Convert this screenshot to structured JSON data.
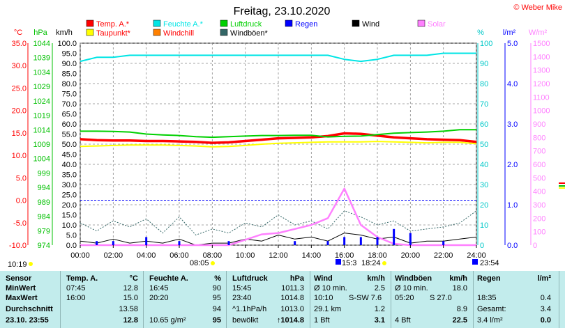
{
  "title": "Freitag, 23.10.2020",
  "credit": "© Weber Mike",
  "legend": [
    {
      "name": "Temp. A.*",
      "color": "#ff0000"
    },
    {
      "name": "Feuchte A.*",
      "color": "#00e5e5"
    },
    {
      "name": "Luftdruck",
      "color": "#00d000"
    },
    {
      "name": "Regen",
      "color": "#0000ff"
    },
    {
      "name": "Wind",
      "color": "#000000"
    },
    {
      "name": "Solar",
      "color": "#ff80ff"
    },
    {
      "name": "Taupunkt*",
      "color": "#ffff00"
    },
    {
      "name": "Windchill",
      "color": "#ff8000"
    },
    {
      "name": "Windböen*",
      "color": "#336666"
    }
  ],
  "axis_units": {
    "temp": "°C",
    "pressure": "hPa",
    "wind": "km/h",
    "humidity": "%",
    "rain": "l/m²",
    "solar": "W/m²"
  },
  "chart_data": {
    "type": "line",
    "x": [
      "00:00",
      "01:00",
      "02:00",
      "03:00",
      "04:00",
      "05:00",
      "06:00",
      "07:00",
      "08:00",
      "09:00",
      "10:00",
      "11:00",
      "12:00",
      "13:00",
      "14:00",
      "15:00",
      "16:00",
      "17:00",
      "18:00",
      "19:00",
      "20:00",
      "21:00",
      "22:00",
      "23:00",
      "24:00"
    ],
    "xticks": [
      "00:00",
      "02:00",
      "04:00",
      "06:00",
      "08:00",
      "10:00",
      "12:00",
      "14:00",
      "16:00",
      "18:00",
      "20:00",
      "22:00",
      "24:00"
    ],
    "axes": {
      "temp": {
        "label": "°C",
        "ylim": [
          -10,
          35
        ],
        "ticks": [
          "35.0",
          "30.0",
          "25.0",
          "20.0",
          "15.0",
          "10.0",
          "5.0",
          "0.0",
          "-5.0",
          "-10.0"
        ]
      },
      "pressure": {
        "label": "hPa",
        "ylim": [
          974,
          1044
        ],
        "ticks": [
          "1044",
          "1039",
          "1034",
          "1029",
          "1024",
          "1019",
          "1014",
          "1009",
          "1004",
          "999",
          "994",
          "989",
          "984",
          "979",
          "974"
        ]
      },
      "wind": {
        "label": "km/h",
        "ylim": [
          0,
          100
        ],
        "ticks": [
          "100.0",
          "95.0",
          "90.0",
          "85.0",
          "80.0",
          "75.0",
          "70.0",
          "65.0",
          "60.0",
          "55.0",
          "50.0",
          "45.0",
          "40.0",
          "35.0",
          "30.0",
          "25.0",
          "20.0",
          "15.0",
          "10.0",
          "5.0",
          "0.0"
        ]
      },
      "humidity": {
        "label": "%",
        "ylim": [
          0,
          100
        ],
        "ticks": [
          "100",
          "90",
          "80",
          "70",
          "60",
          "50",
          "40",
          "30",
          "20",
          "10",
          "0"
        ]
      },
      "rain": {
        "label": "l/m²",
        "ylim": [
          0,
          5
        ],
        "ticks": [
          "5.0",
          "4.0",
          "3.0",
          "2.0",
          "1.0",
          "0.0"
        ]
      },
      "solar": {
        "label": "W/m²",
        "ylim": [
          0,
          1500
        ],
        "ticks": [
          "1500",
          "1400",
          "1300",
          "1200",
          "1100",
          "1000",
          "900",
          "800",
          "700",
          "600",
          "500",
          "400",
          "300",
          "200",
          "100",
          "0"
        ]
      }
    },
    "series": [
      {
        "name": "Temp. A.*",
        "axis": "temp",
        "color": "#ff0000",
        "values": [
          13.6,
          13.4,
          13.3,
          13.3,
          13.2,
          13.2,
          13.1,
          13.0,
          12.8,
          12.9,
          13.2,
          13.5,
          13.8,
          13.9,
          14.0,
          14.3,
          14.9,
          14.8,
          14.4,
          14.0,
          13.8,
          13.6,
          13.5,
          13.4,
          13.0
        ]
      },
      {
        "name": "Feuchte A.*",
        "axis": "humidity",
        "color": "#00e5e5",
        "values": [
          91,
          93,
          93,
          94,
          94,
          94,
          94,
          94,
          94,
          94,
          94,
          94,
          94,
          94,
          94,
          94,
          92,
          91,
          92,
          94,
          94,
          94,
          95,
          95,
          95
        ]
      },
      {
        "name": "Luftdruck",
        "axis": "pressure",
        "color": "#00d000",
        "values": [
          1013.5,
          1013.5,
          1013.4,
          1013.2,
          1012.5,
          1012.2,
          1012.0,
          1011.6,
          1011.4,
          1011.6,
          1011.8,
          1012.0,
          1012.0,
          1012.1,
          1012.1,
          1011.5,
          1011.7,
          1011.8,
          1012.3,
          1012.8,
          1013.0,
          1013.2,
          1013.5,
          1014.0,
          1014.0
        ]
      },
      {
        "name": "Taupunkt*",
        "axis": "temp",
        "color": "#ffff00",
        "values": [
          12.0,
          12.1,
          12.2,
          12.3,
          12.3,
          12.3,
          12.2,
          12.1,
          11.9,
          12.0,
          12.2,
          12.5,
          12.7,
          12.8,
          12.9,
          13.0,
          13.0,
          13.0,
          13.1,
          13.0,
          12.9,
          12.8,
          12.9,
          12.9,
          12.6
        ]
      },
      {
        "name": "Windböen*",
        "axis": "wind",
        "color": "#336666",
        "values": [
          11,
          7,
          12,
          9,
          13,
          6,
          14,
          5,
          8,
          6,
          11,
          9,
          15,
          10,
          12,
          8,
          17,
          14,
          10,
          12,
          7,
          8,
          9,
          11,
          17
        ]
      },
      {
        "name": "Wind",
        "axis": "wind",
        "color": "#000000",
        "values": [
          2,
          1,
          3,
          1,
          2,
          1,
          3,
          0,
          1,
          1,
          3,
          2,
          5,
          3,
          4,
          2,
          6,
          5,
          3,
          4,
          1,
          2,
          2,
          3,
          4
        ]
      },
      {
        "name": "Solar",
        "axis": "solar",
        "color": "#ff80ff",
        "values": [
          0,
          0,
          0,
          0,
          0,
          0,
          0,
          0,
          0,
          0,
          40,
          80,
          90,
          120,
          150,
          200,
          420,
          150,
          60,
          10,
          0,
          0,
          0,
          0,
          0
        ]
      },
      {
        "name": "Regen",
        "axis": "rain",
        "color": "#0000ff",
        "values": [
          0,
          0.1,
          0.1,
          0,
          0.2,
          0,
          0.1,
          0,
          0,
          0.1,
          0,
          0,
          0,
          0.1,
          0,
          0.1,
          0.2,
          0.2,
          0.2,
          0.4,
          0.3,
          0,
          0.1,
          0,
          0
        ]
      }
    ],
    "reference_line": {
      "axis": "temp",
      "value": 0,
      "color": "#0000ff"
    },
    "grid": true
  },
  "time_marks": {
    "left": "10:19",
    "sunrise": "08:05",
    "mark1": "15:3",
    "mark2": "18:24",
    "right": "23:54"
  },
  "table": {
    "sensor": {
      "header": "Sensor",
      "rows": [
        "MinWert",
        "MaxWert",
        "Durchschnitt",
        "23.10. 23:55"
      ]
    },
    "temp": {
      "header": "Temp. A.",
      "unit": "°C",
      "times": [
        "07:45",
        "16:00",
        "",
        ""
      ],
      "values": [
        "12.8",
        "15.0",
        "13.58",
        "12.8"
      ]
    },
    "humidity": {
      "header": "Feuchte A.",
      "unit": "%",
      "times": [
        "16:45",
        "20:20",
        "",
        "10.65 g/m²"
      ],
      "values": [
        "90",
        "95",
        "94",
        "95"
      ]
    },
    "pressure": {
      "header": "Luftdruck",
      "unit": "hPa",
      "times": [
        "15:45",
        "23:40",
        "^1.1hPa/h",
        "bewölkt"
      ],
      "values": [
        "1011.3",
        "1014.8",
        "1013.0",
        "↑1014.8"
      ]
    },
    "wind": {
      "header": "Wind",
      "unit": "km/h",
      "times": [
        "Ø 10 min.",
        "10:10",
        "29.1 km",
        "1 Bft"
      ],
      "dirs": [
        "",
        "S-SW 7.6",
        "",
        ""
      ],
      "values": [
        "2.5",
        "",
        "1.2",
        "3.1"
      ]
    },
    "gusts": {
      "header": "Windböen",
      "unit": "km/h",
      "times": [
        "Ø 10 min.",
        "05:20",
        "",
        "4 Bft"
      ],
      "dirs": [
        "",
        "S 27.0",
        "",
        ""
      ],
      "values": [
        "18.0",
        "",
        "8.9",
        "22.5"
      ]
    },
    "rain": {
      "header": "Regen",
      "unit": "l/m²",
      "times": [
        "",
        "18:35",
        "Gesamt:",
        "3.4 l/m²"
      ],
      "values": [
        "",
        "0.4",
        "3.4",
        "0.0"
      ]
    }
  }
}
